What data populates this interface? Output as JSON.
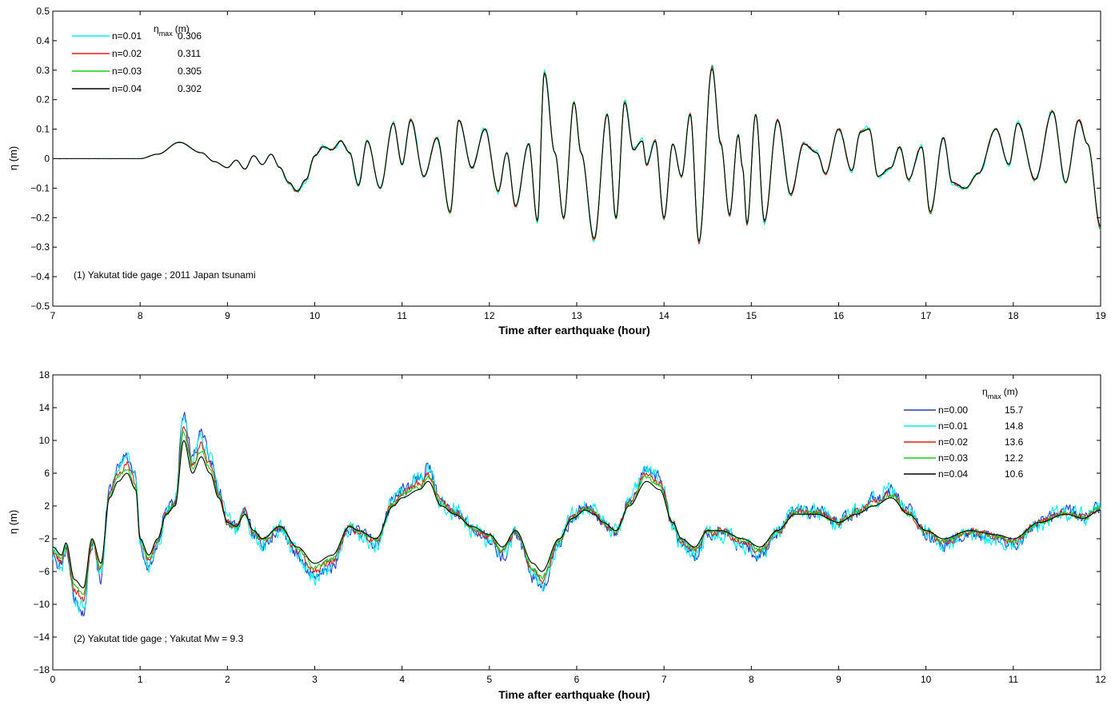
{
  "chart_data": [
    {
      "type": "line",
      "xlabel": "Time after earthquake (hour)",
      "ylabel": "η (m)",
      "xlim": [
        7,
        19
      ],
      "ylim": [
        -0.5,
        0.5
      ],
      "xticks": [
        "7",
        "8",
        "9",
        "10",
        "11",
        "12",
        "13",
        "14",
        "15",
        "16",
        "17",
        "18",
        "19"
      ],
      "yticks": [
        "0.5",
        "0.4",
        "0.3",
        "0.2",
        "0.1",
        "0",
        "−0.1",
        "−0.2",
        "−0.3",
        "−0.4",
        "−0.5"
      ],
      "annotation": "(1) Yakutat tide gage ;   2011 Japan tsunami",
      "legend_header": "η",
      "legend_header_sub": "max",
      "legend_header_unit": "(m)",
      "legend_position": "top-left",
      "series": [
        {
          "name": "n=0.01",
          "eta_max": "0.306",
          "color": "#00f0f0"
        },
        {
          "name": "n=0.02",
          "eta_max": "0.311",
          "color": "#e8190f"
        },
        {
          "name": "n=0.03",
          "eta_max": "0.305",
          "color": "#10d010"
        },
        {
          "name": "n=0.04",
          "eta_max": "0.302",
          "color": "#000000"
        }
      ],
      "base_curve": [
        [
          7,
          0
        ],
        [
          8,
          0
        ],
        [
          8.2,
          0.015
        ],
        [
          8.45,
          0.055
        ],
        [
          8.7,
          0.02
        ],
        [
          8.85,
          -0.01
        ],
        [
          9,
          -0.03
        ],
        [
          9.1,
          -0.005
        ],
        [
          9.2,
          -0.035
        ],
        [
          9.3,
          0.01
        ],
        [
          9.4,
          -0.02
        ],
        [
          9.5,
          0.015
        ],
        [
          9.6,
          -0.03
        ],
        [
          9.7,
          -0.08
        ],
        [
          9.8,
          -0.11
        ],
        [
          9.9,
          -0.07
        ],
        [
          10,
          0.01
        ],
        [
          10.1,
          0.04
        ],
        [
          10.2,
          0.03
        ],
        [
          10.3,
          0.06
        ],
        [
          10.4,
          0.02
        ],
        [
          10.5,
          -0.09
        ],
        [
          10.6,
          0.06
        ],
        [
          10.75,
          -0.1
        ],
        [
          10.9,
          0.12
        ],
        [
          11,
          -0.02
        ],
        [
          11.1,
          0.13
        ],
        [
          11.25,
          -0.06
        ],
        [
          11.4,
          0.07
        ],
        [
          11.55,
          -0.18
        ],
        [
          11.65,
          0.13
        ],
        [
          11.8,
          -0.03
        ],
        [
          11.95,
          0.1
        ],
        [
          12.1,
          -0.11
        ],
        [
          12.2,
          0.02
        ],
        [
          12.3,
          -0.16
        ],
        [
          12.45,
          0.05
        ],
        [
          12.55,
          -0.21
        ],
        [
          12.63,
          0.29
        ],
        [
          12.75,
          0.02
        ],
        [
          12.85,
          -0.2
        ],
        [
          12.97,
          0.19
        ],
        [
          13.05,
          0.02
        ],
        [
          13.2,
          -0.27
        ],
        [
          13.35,
          0.15
        ],
        [
          13.45,
          -0.2
        ],
        [
          13.55,
          0.19
        ],
        [
          13.65,
          0.03
        ],
        [
          13.75,
          0.06
        ],
        [
          13.8,
          -0.02
        ],
        [
          13.9,
          0.06
        ],
        [
          14,
          -0.2
        ],
        [
          14.1,
          0.05
        ],
        [
          14.2,
          -0.06
        ],
        [
          14.3,
          0.15
        ],
        [
          14.4,
          -0.28
        ],
        [
          14.55,
          0.305
        ],
        [
          14.65,
          0.05
        ],
        [
          14.75,
          -0.19
        ],
        [
          14.85,
          0.08
        ],
        [
          14.9,
          -0.03
        ],
        [
          14.95,
          -0.22
        ],
        [
          15.05,
          0.15
        ],
        [
          15.15,
          -0.21
        ],
        [
          15.3,
          0.13
        ],
        [
          15.45,
          -0.12
        ],
        [
          15.6,
          0.05
        ],
        [
          15.75,
          0.02
        ],
        [
          15.85,
          -0.05
        ],
        [
          16,
          0.1
        ],
        [
          16.15,
          -0.04
        ],
        [
          16.25,
          0.09
        ],
        [
          16.35,
          0.1
        ],
        [
          16.45,
          -0.06
        ],
        [
          16.6,
          -0.03
        ],
        [
          16.7,
          0.04
        ],
        [
          16.8,
          -0.07
        ],
        [
          16.95,
          0.04
        ],
        [
          17.05,
          -0.18
        ],
        [
          17.2,
          0.07
        ],
        [
          17.3,
          -0.08
        ],
        [
          17.45,
          -0.1
        ],
        [
          17.6,
          -0.05
        ],
        [
          17.8,
          0.1
        ],
        [
          17.95,
          -0.02
        ],
        [
          18.05,
          0.12
        ],
        [
          18.25,
          -0.07
        ],
        [
          18.45,
          0.16
        ],
        [
          18.6,
          -0.08
        ],
        [
          18.75,
          0.13
        ],
        [
          18.85,
          0.05
        ],
        [
          19,
          -0.23
        ]
      ]
    },
    {
      "type": "line",
      "xlabel": "Time after earthquake (hour)",
      "ylabel": "η (m)",
      "xlim": [
        0,
        12
      ],
      "ylim": [
        -18,
        18
      ],
      "xticks": [
        "0",
        "1",
        "2",
        "3",
        "4",
        "5",
        "6",
        "7",
        "8",
        "9",
        "10",
        "11",
        "12"
      ],
      "yticks": [
        "18",
        "14",
        "10",
        "6",
        "2",
        "−2",
        "−6",
        "−10",
        "−14",
        "−18"
      ],
      "annotation": "(2) Yakutat tide gage ;   Yakutat  Mw = 9.3",
      "legend_header": "η",
      "legend_header_sub": "max",
      "legend_header_unit": "(m)",
      "legend_position": "top-right",
      "series": [
        {
          "name": "n=0.00",
          "eta_max": "15.7",
          "color": "#1f3fd0"
        },
        {
          "name": "n=0.01",
          "eta_max": "14.8",
          "color": "#00f0f0"
        },
        {
          "name": "n=0.02",
          "eta_max": "13.6",
          "color": "#e8190f"
        },
        {
          "name": "n=0.03",
          "eta_max": "12.2",
          "color": "#10d010"
        },
        {
          "name": "n=0.04",
          "eta_max": "10.6",
          "color": "#000000"
        }
      ],
      "base_curve": [
        [
          0,
          -3
        ],
        [
          0.1,
          -4
        ],
        [
          0.15,
          -2.5
        ],
        [
          0.25,
          -7
        ],
        [
          0.35,
          -8
        ],
        [
          0.45,
          -2
        ],
        [
          0.55,
          -5
        ],
        [
          0.65,
          3
        ],
        [
          0.75,
          5
        ],
        [
          0.85,
          6
        ],
        [
          0.95,
          4
        ],
        [
          1,
          -2
        ],
        [
          1.1,
          -4
        ],
        [
          1.2,
          -2
        ],
        [
          1.3,
          1
        ],
        [
          1.4,
          2
        ],
        [
          1.5,
          10
        ],
        [
          1.6,
          6
        ],
        [
          1.7,
          8
        ],
        [
          1.8,
          6
        ],
        [
          1.9,
          3
        ],
        [
          2,
          0
        ],
        [
          2.1,
          -0.5
        ],
        [
          2.2,
          1
        ],
        [
          2.3,
          -1
        ],
        [
          2.4,
          -2
        ],
        [
          2.6,
          -0.5
        ],
        [
          2.8,
          -3
        ],
        [
          3,
          -5
        ],
        [
          3.2,
          -4
        ],
        [
          3.4,
          -0.5
        ],
        [
          3.5,
          -1
        ],
        [
          3.7,
          -2
        ],
        [
          3.9,
          2
        ],
        [
          4,
          3
        ],
        [
          4.2,
          4
        ],
        [
          4.3,
          5
        ],
        [
          4.45,
          2
        ],
        [
          4.6,
          1
        ],
        [
          4.8,
          -0.5
        ],
        [
          5,
          -1.5
        ],
        [
          5.15,
          -3
        ],
        [
          5.3,
          -1
        ],
        [
          5.5,
          -5
        ],
        [
          5.6,
          -6
        ],
        [
          5.8,
          -2
        ],
        [
          5.95,
          0.5
        ],
        [
          6.1,
          1.5
        ],
        [
          6.2,
          1
        ],
        [
          6.3,
          0
        ],
        [
          6.45,
          -1
        ],
        [
          6.6,
          2
        ],
        [
          6.8,
          5
        ],
        [
          6.95,
          4
        ],
        [
          7.1,
          0
        ],
        [
          7.2,
          -2
        ],
        [
          7.35,
          -3
        ],
        [
          7.5,
          -1
        ],
        [
          7.65,
          -1
        ],
        [
          7.9,
          -2
        ],
        [
          8.1,
          -3
        ],
        [
          8.3,
          -1
        ],
        [
          8.5,
          1
        ],
        [
          8.75,
          1
        ],
        [
          9,
          0
        ],
        [
          9.2,
          1
        ],
        [
          9.4,
          2
        ],
        [
          9.6,
          3
        ],
        [
          9.8,
          1
        ],
        [
          10,
          -1
        ],
        [
          10.2,
          -2
        ],
        [
          10.5,
          -1
        ],
        [
          10.8,
          -1.5
        ],
        [
          11,
          -2
        ],
        [
          11.3,
          0
        ],
        [
          11.6,
          1
        ],
        [
          11.8,
          0.5
        ],
        [
          12,
          1.5
        ]
      ]
    }
  ]
}
